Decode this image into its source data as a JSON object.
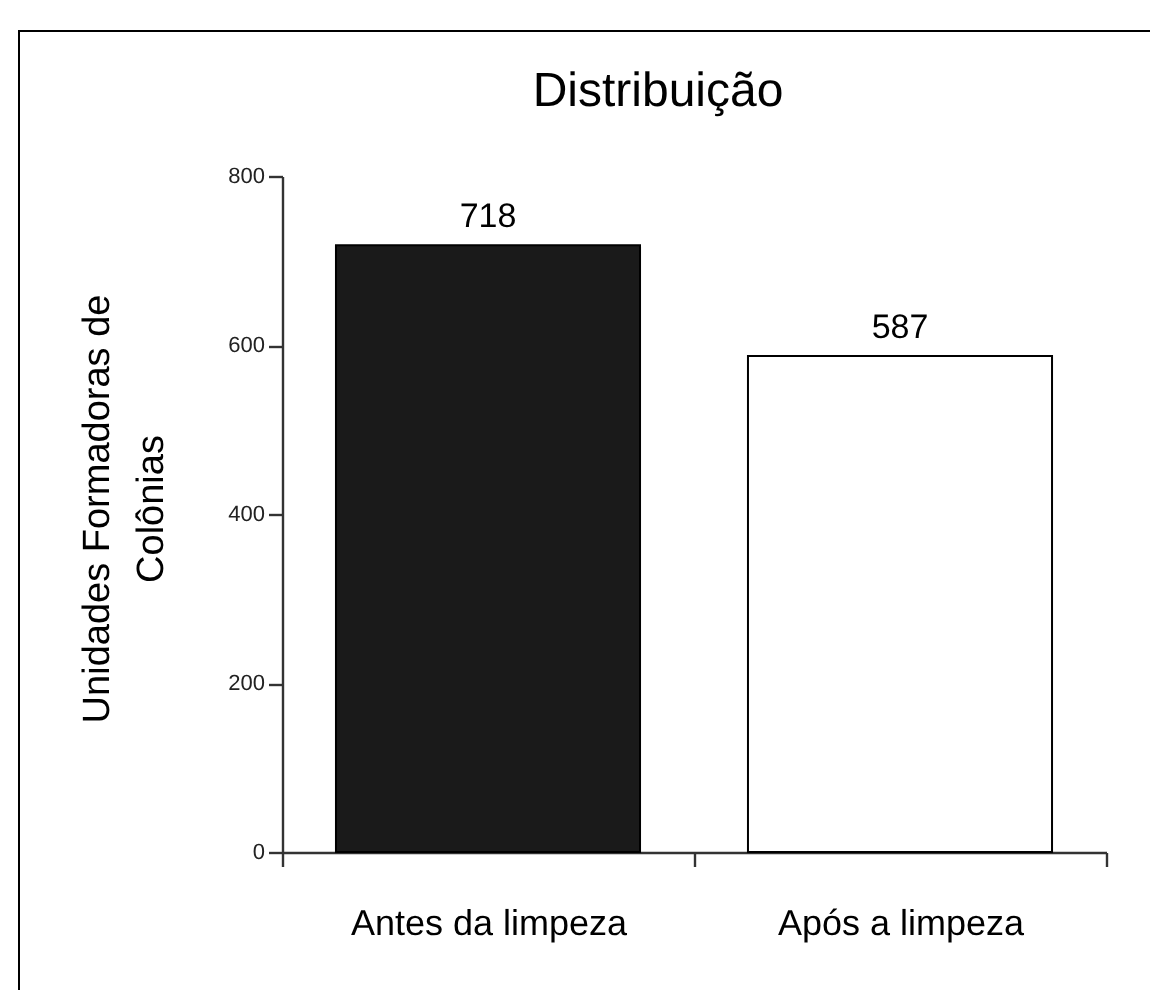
{
  "chart_data": {
    "type": "bar",
    "title": "Distribuição",
    "ylabel": "Unidades Formadoras de\nColônias",
    "categories": [
      "Antes da limpeza",
      "Após a limpeza"
    ],
    "values": [
      718,
      587
    ],
    "colors": [
      "#1a1a1a",
      "#ffffff"
    ],
    "ylim": [
      0,
      800
    ],
    "yticks": [
      0,
      200,
      400,
      600,
      800
    ],
    "data_labels": true
  }
}
